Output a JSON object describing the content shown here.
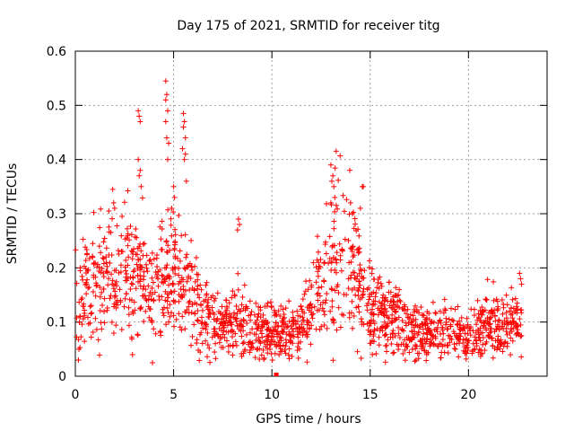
{
  "chart_data": {
    "type": "scatter",
    "title": "Day 175 of 2021, SRMTID for receiver titg",
    "xlabel": "GPS time / hours",
    "ylabel": "SRMTID / TECUs",
    "xlim": [
      0,
      24
    ],
    "ylim": [
      0,
      0.6
    ],
    "grid": true,
    "marker": "+",
    "marker_color": "#ff0000",
    "x_ticks": [
      0,
      5,
      10,
      15,
      20
    ],
    "x_tick_labels": [
      "0",
      "5",
      "10",
      "15",
      "20"
    ],
    "y_ticks": [
      0,
      0.1,
      0.2,
      0.3,
      0.4,
      0.5,
      0.6
    ],
    "y_tick_labels": [
      "0",
      "0.1",
      "0.2",
      "0.3",
      "0.4",
      "0.5",
      "0.6"
    ],
    "x_range_of_data": [
      0,
      22.7
    ],
    "trend_profile": [
      {
        "x": 0.0,
        "y": 0.12
      },
      {
        "x": 0.5,
        "y": 0.15
      },
      {
        "x": 1.0,
        "y": 0.17
      },
      {
        "x": 1.5,
        "y": 0.18
      },
      {
        "x": 2.0,
        "y": 0.19
      },
      {
        "x": 2.5,
        "y": 0.2
      },
      {
        "x": 3.0,
        "y": 0.19
      },
      {
        "x": 3.5,
        "y": 0.17
      },
      {
        "x": 4.0,
        "y": 0.15
      },
      {
        "x": 4.5,
        "y": 0.18
      },
      {
        "x": 5.0,
        "y": 0.19
      },
      {
        "x": 5.5,
        "y": 0.17
      },
      {
        "x": 6.0,
        "y": 0.15
      },
      {
        "x": 6.5,
        "y": 0.12
      },
      {
        "x": 7.0,
        "y": 0.1
      },
      {
        "x": 7.5,
        "y": 0.09
      },
      {
        "x": 8.0,
        "y": 0.1
      },
      {
        "x": 8.5,
        "y": 0.1
      },
      {
        "x": 9.0,
        "y": 0.09
      },
      {
        "x": 9.5,
        "y": 0.08
      },
      {
        "x": 10.0,
        "y": 0.08
      },
      {
        "x": 10.5,
        "y": 0.08
      },
      {
        "x": 11.0,
        "y": 0.08
      },
      {
        "x": 11.5,
        "y": 0.1
      },
      {
        "x": 12.0,
        "y": 0.12
      },
      {
        "x": 12.5,
        "y": 0.16
      },
      {
        "x": 13.0,
        "y": 0.2
      },
      {
        "x": 13.5,
        "y": 0.22
      },
      {
        "x": 14.0,
        "y": 0.21
      },
      {
        "x": 14.5,
        "y": 0.17
      },
      {
        "x": 15.0,
        "y": 0.13
      },
      {
        "x": 15.5,
        "y": 0.12
      },
      {
        "x": 16.0,
        "y": 0.11
      },
      {
        "x": 16.5,
        "y": 0.1
      },
      {
        "x": 17.0,
        "y": 0.09
      },
      {
        "x": 17.5,
        "y": 0.08
      },
      {
        "x": 18.0,
        "y": 0.08
      },
      {
        "x": 18.5,
        "y": 0.08
      },
      {
        "x": 19.0,
        "y": 0.08
      },
      {
        "x": 19.5,
        "y": 0.07
      },
      {
        "x": 20.0,
        "y": 0.07
      },
      {
        "x": 20.5,
        "y": 0.08
      },
      {
        "x": 21.0,
        "y": 0.1
      },
      {
        "x": 21.5,
        "y": 0.09
      },
      {
        "x": 22.0,
        "y": 0.08
      },
      {
        "x": 22.5,
        "y": 0.1
      },
      {
        "x": 22.7,
        "y": 0.12
      }
    ],
    "outliers": [
      {
        "x": 3.2,
        "y": 0.49
      },
      {
        "x": 3.25,
        "y": 0.48
      },
      {
        "x": 3.3,
        "y": 0.47
      },
      {
        "x": 3.2,
        "y": 0.4
      },
      {
        "x": 3.3,
        "y": 0.38
      },
      {
        "x": 3.25,
        "y": 0.37
      },
      {
        "x": 3.35,
        "y": 0.35
      },
      {
        "x": 4.6,
        "y": 0.545
      },
      {
        "x": 4.65,
        "y": 0.52
      },
      {
        "x": 4.6,
        "y": 0.51
      },
      {
        "x": 4.7,
        "y": 0.49
      },
      {
        "x": 4.6,
        "y": 0.47
      },
      {
        "x": 4.65,
        "y": 0.44
      },
      {
        "x": 4.75,
        "y": 0.43
      },
      {
        "x": 4.7,
        "y": 0.4
      },
      {
        "x": 5.5,
        "y": 0.485
      },
      {
        "x": 5.55,
        "y": 0.47
      },
      {
        "x": 5.5,
        "y": 0.46
      },
      {
        "x": 5.6,
        "y": 0.44
      },
      {
        "x": 5.45,
        "y": 0.42
      },
      {
        "x": 5.6,
        "y": 0.41
      },
      {
        "x": 5.55,
        "y": 0.4
      },
      {
        "x": 5.65,
        "y": 0.36
      },
      {
        "x": 1.9,
        "y": 0.345
      },
      {
        "x": 1.95,
        "y": 0.32
      },
      {
        "x": 2.0,
        "y": 0.31
      },
      {
        "x": 5.0,
        "y": 0.35
      },
      {
        "x": 5.05,
        "y": 0.33
      },
      {
        "x": 4.9,
        "y": 0.31
      },
      {
        "x": 8.3,
        "y": 0.29
      },
      {
        "x": 8.35,
        "y": 0.28
      },
      {
        "x": 8.25,
        "y": 0.27
      },
      {
        "x": 13.0,
        "y": 0.39
      },
      {
        "x": 13.1,
        "y": 0.37
      },
      {
        "x": 13.05,
        "y": 0.36
      },
      {
        "x": 13.15,
        "y": 0.35
      },
      {
        "x": 13.2,
        "y": 0.33
      },
      {
        "x": 13.0,
        "y": 0.32
      },
      {
        "x": 14.0,
        "y": 0.32
      },
      {
        "x": 14.1,
        "y": 0.3
      },
      {
        "x": 14.6,
        "y": 0.35
      },
      {
        "x": 14.65,
        "y": 0.35
      },
      {
        "x": 14.5,
        "y": 0.31
      },
      {
        "x": 22.6,
        "y": 0.19
      },
      {
        "x": 22.65,
        "y": 0.18
      },
      {
        "x": 22.7,
        "y": 0.17
      },
      {
        "x": 10.2,
        "y": 0.0
      },
      {
        "x": 10.25,
        "y": 0.0
      }
    ]
  }
}
